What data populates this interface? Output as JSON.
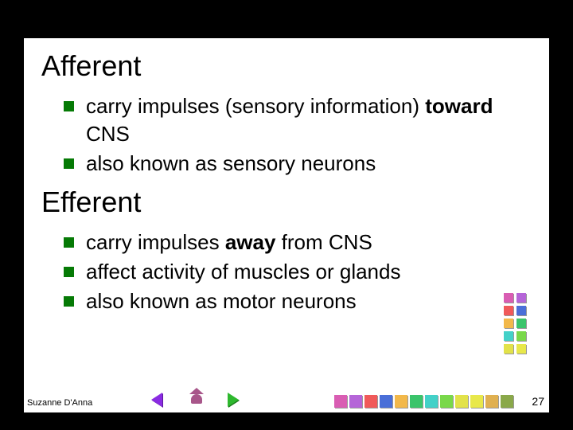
{
  "headings": {
    "h1": "Afferent",
    "h2": "Efferent"
  },
  "section1": {
    "items": [
      {
        "pre": " carry impulses (sensory information) ",
        "bold": "toward",
        "post": " CNS"
      },
      {
        "pre": "also known as sensory neurons",
        "bold": "",
        "post": ""
      }
    ]
  },
  "section2": {
    "items": [
      {
        "pre": "carry impulses ",
        "bold": "away",
        "post": " from CNS"
      },
      {
        "pre": "affect activity of muscles or glands",
        "bold": "",
        "post": ""
      },
      {
        "pre": "also known as motor neurons",
        "bold": "",
        "post": ""
      }
    ]
  },
  "footer": {
    "author": "Suzanne D'Anna",
    "page": "27"
  },
  "bullet_color": "#057a05",
  "side_palette_pairs": [
    [
      "#d95db3",
      "#b565d8"
    ],
    [
      "#f05a5a",
      "#4a6fd8"
    ],
    [
      "#f2b84a",
      "#3bc46b"
    ],
    [
      "#43d1c8",
      "#79d84a"
    ],
    [
      "#e2e24a",
      "#e8e84a"
    ]
  ],
  "bottom_palette": [
    "#d95db3",
    "#b565d8",
    "#f05a5a",
    "#4a6fd8",
    "#f2b84a",
    "#3bc46b",
    "#43d1c8",
    "#79d84a",
    "#e2e24a",
    "#e8e84a",
    "#e0b050",
    "#8aa84a"
  ]
}
